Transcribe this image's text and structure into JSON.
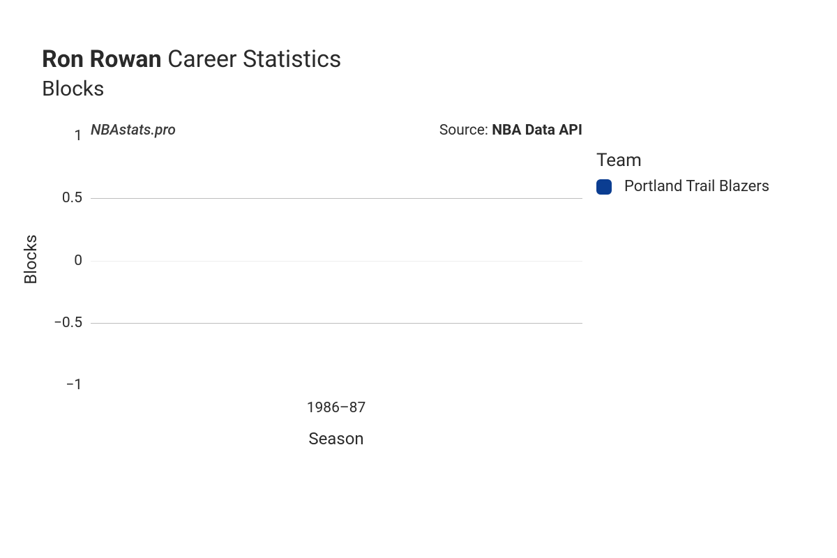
{
  "title_bold": "Ron Rowan",
  "title_light": " Career Statistics",
  "subtitle": "Blocks",
  "watermark": "NBAstats.pro",
  "source_prefix": "Source: ",
  "source_name": "NBA Data API",
  "chart": {
    "type": "bar",
    "background_color": "#ffffff",
    "x": {
      "label": "Season",
      "categories": [
        "1986–87"
      ],
      "label_fontsize": 24,
      "tick_fontsize": 21
    },
    "y": {
      "label": "Blocks",
      "ticks": [
        {
          "value": 1,
          "label": "1",
          "ypx": 20,
          "grid": false,
          "grid_color": ""
        },
        {
          "value": 0.5,
          "label": "0.5",
          "ypx": 109,
          "grid": true,
          "grid_color": "#bdbdbd"
        },
        {
          "value": 0,
          "label": "0",
          "ypx": 199,
          "grid": true,
          "grid_color": "#ededed"
        },
        {
          "value": -0.5,
          "label": "−0.5",
          "ypx": 288,
          "grid": true,
          "grid_color": "#bdbdbd"
        },
        {
          "value": -1,
          "label": "−1",
          "ypx": 377,
          "grid": false,
          "grid_color": ""
        }
      ],
      "label_fontsize": 24,
      "tick_fontsize": 21
    },
    "series": [
      {
        "team": "Portland Trail Blazers",
        "season": "1986–87",
        "value": 0,
        "color": "#0b3d91"
      }
    ],
    "legend": {
      "title": "Team",
      "items": [
        {
          "label": "Portland Trail Blazers",
          "color": "#0b3d91"
        }
      ]
    }
  }
}
